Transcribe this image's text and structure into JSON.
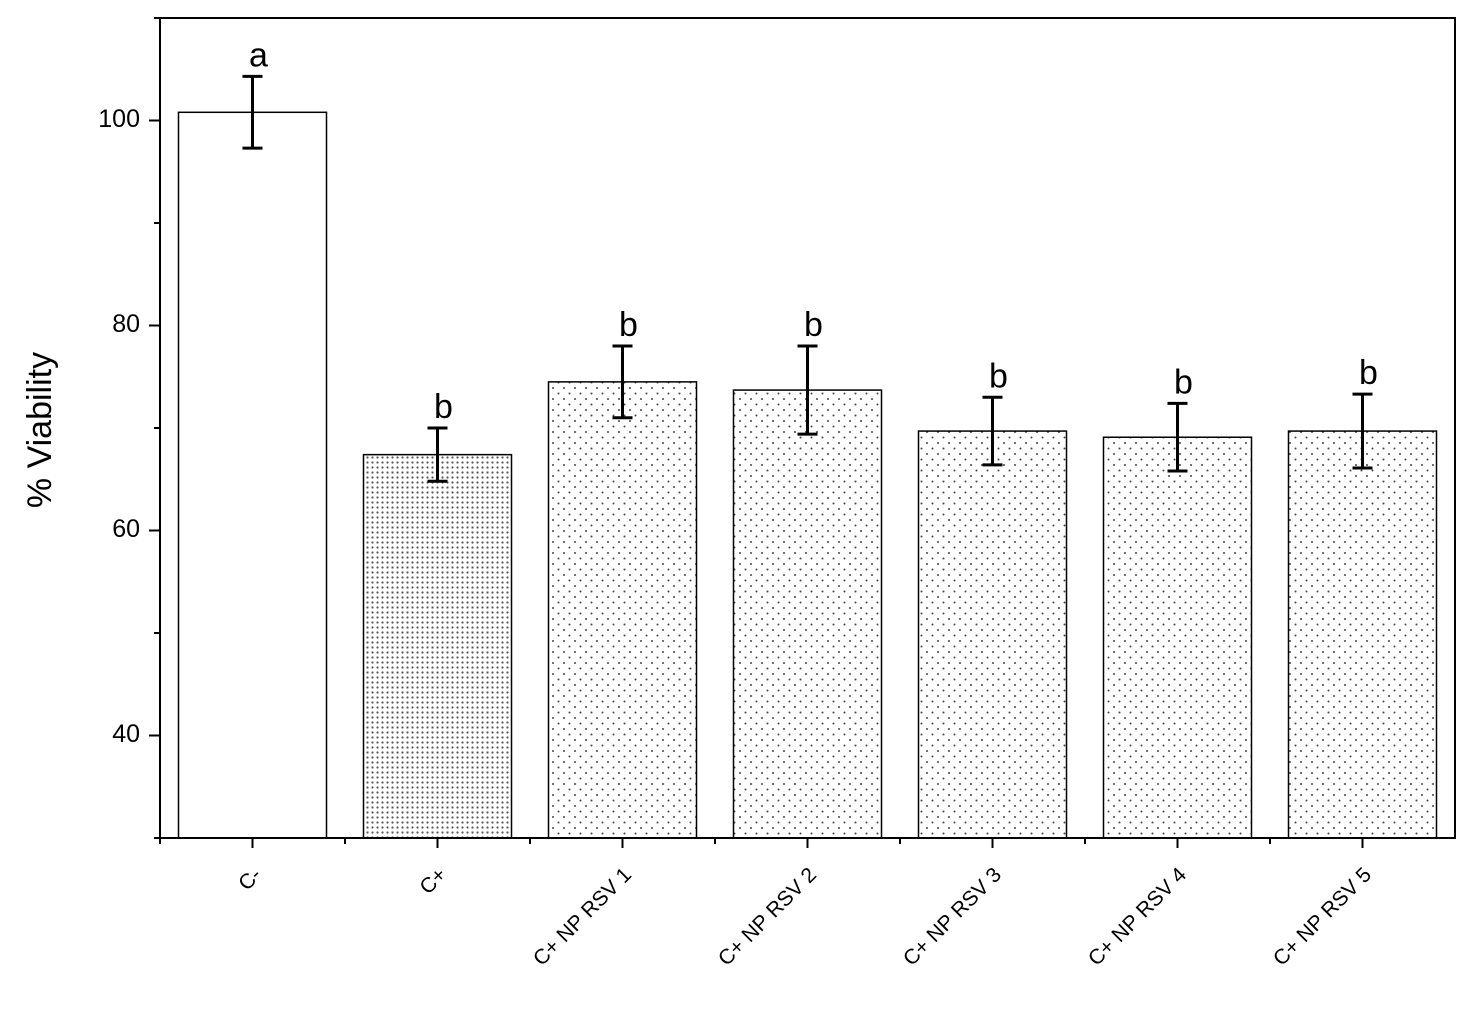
{
  "chart_data": {
    "type": "bar",
    "y_label": "% Viability",
    "categories": [
      "C-",
      "C+",
      "C+ NP RSV 1",
      "C+ NP RSV 2",
      "C+ NP RSV 3",
      "C+ NP RSV 4",
      "C+ NP RSV 5"
    ],
    "values": [
      100.8,
      67.4,
      74.5,
      73.7,
      69.7,
      69.1,
      69.7
    ],
    "errors": [
      3.5,
      2.6,
      3.5,
      4.3,
      3.3,
      3.3,
      3.6
    ],
    "annotations": [
      "a",
      "b",
      "b",
      "b",
      "b",
      "b",
      "b"
    ],
    "bar_patterns": [
      "blank",
      "dense-dots",
      "sparse-dots",
      "sparse-dots",
      "sparse-dots",
      "sparse-dots",
      "sparse-dots"
    ],
    "color": "#000000",
    "ylim": [
      30,
      110
    ],
    "yticks": [
      40,
      60,
      80,
      100
    ],
    "minor_yticks": [
      30,
      50,
      70,
      90,
      110
    ],
    "grid": false
  }
}
